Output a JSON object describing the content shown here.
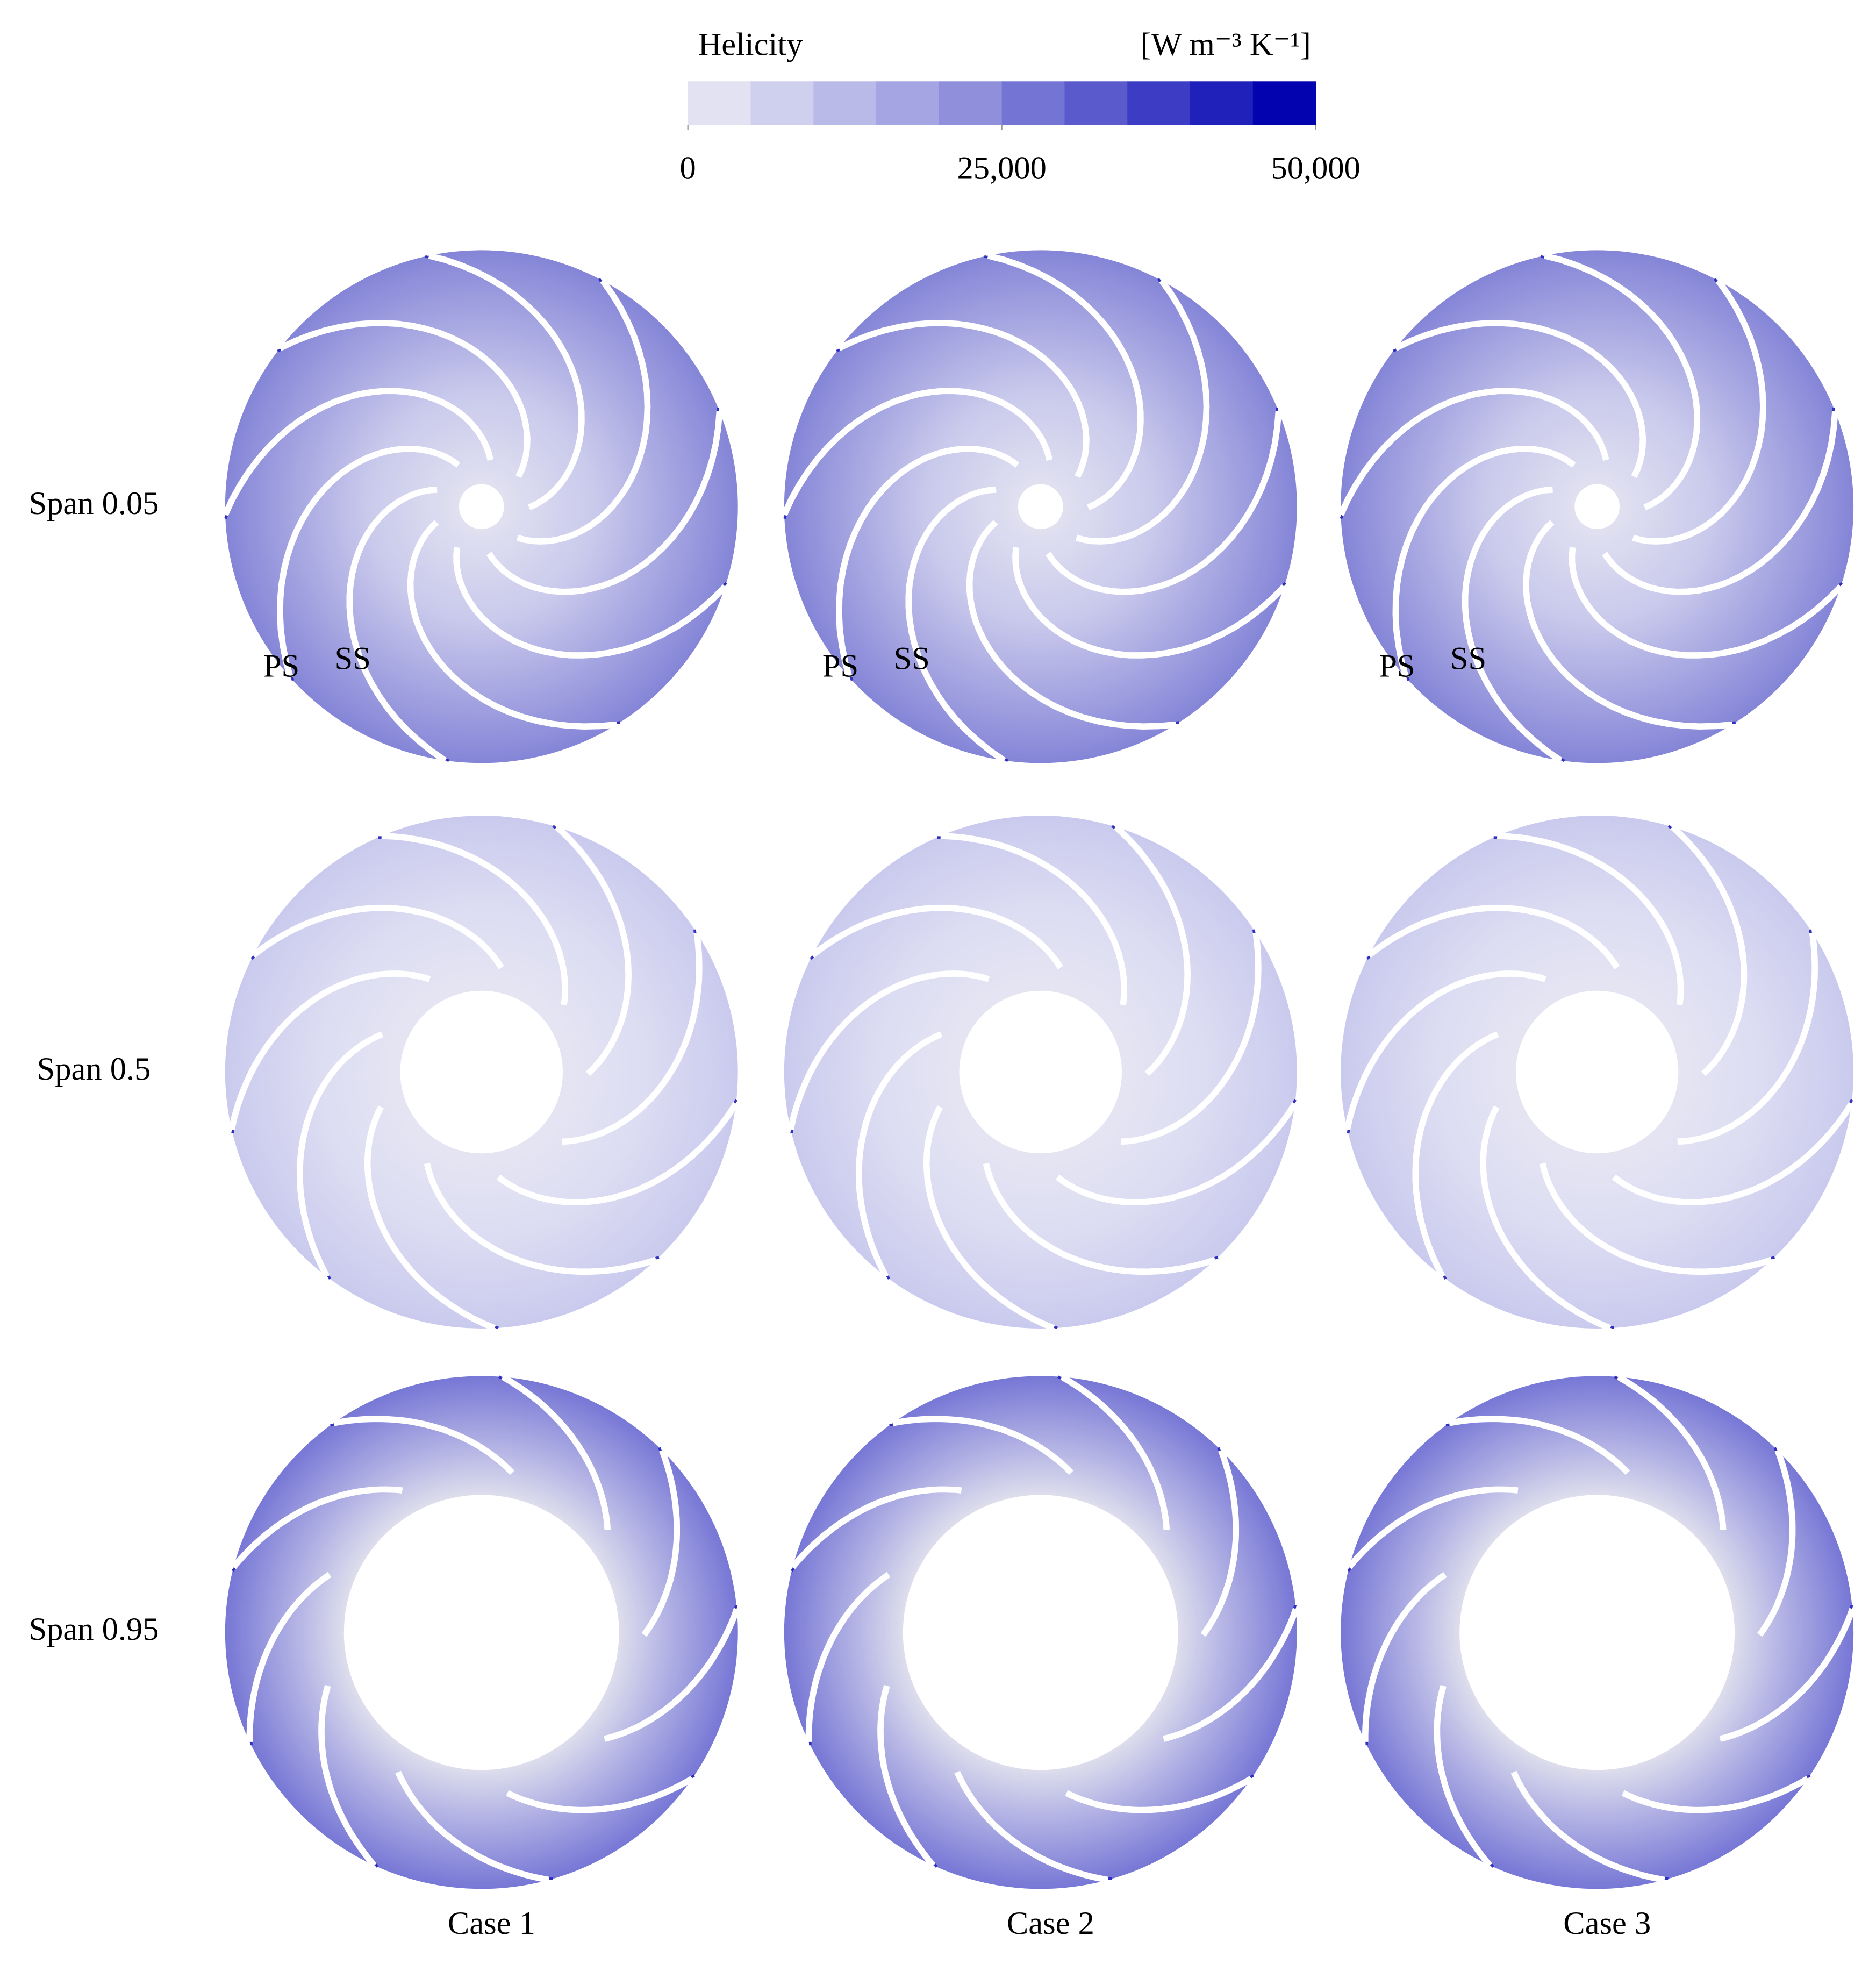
{
  "colorbar": {
    "title": "Helicity",
    "unit": "[W m⁻³ K⁻¹]",
    "range": [
      0,
      50000
    ],
    "ticks": [
      0,
      {
        "value": 25000,
        "label": "25,000"
      },
      {
        "value": 50000,
        "label": "50,000"
      }
    ],
    "colors": [
      "#e2e2f2",
      "#cfcfee",
      "#babae9",
      "#a5a5e3",
      "#8f8fdc",
      "#7474d5",
      "#5a5acd",
      "#3c3cc4",
      "#2020bb",
      "#0303b0"
    ]
  },
  "rows": [
    "Span 0.05",
    "Span 0.5",
    "Span 0.95"
  ],
  "columns": [
    "Case 1",
    "Case 2",
    "Case 3"
  ],
  "annotations": [
    "PS",
    "SS"
  ]
}
